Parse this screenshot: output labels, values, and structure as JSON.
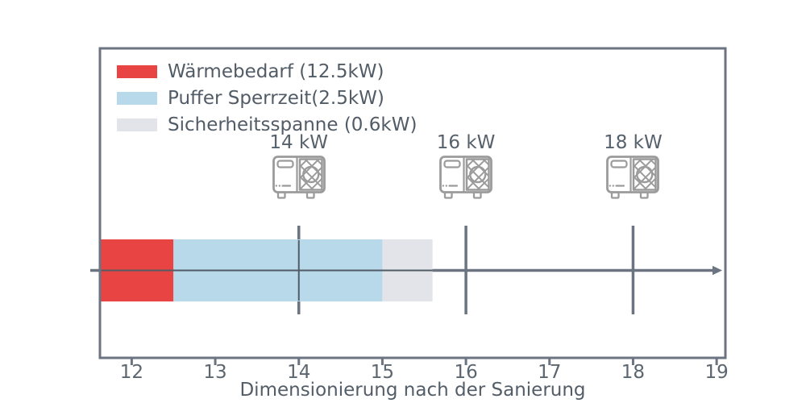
{
  "chart_data": {
    "type": "bar",
    "orientation": "horizontal",
    "stacked": true,
    "title": "",
    "xlabel": "Dimensionierung nach der Sanierung",
    "ylabel": "",
    "xlim": [
      11.62,
      19.105
    ],
    "xticks": [
      "12",
      "13",
      "14",
      "15",
      "16",
      "17",
      "18",
      "19"
    ],
    "grid": false,
    "legend_position": "upper-left-inside",
    "bar_start_kw": 11.62,
    "segments": [
      {
        "name": "waermebedarf",
        "label": "Wärmebedarf (12.5kW)",
        "value_kw": 12.5,
        "stack_end_kw": 12.5,
        "color": "#e94444"
      },
      {
        "name": "puffer-sperrzeit",
        "label": "Puffer Sperrzeit(2.5kW)",
        "value_kw": 2.5,
        "stack_end_kw": 15.0,
        "color": "#b7d9ea"
      },
      {
        "name": "sicherheitsspanne",
        "label": "Sicherheitsspanne (0.6kW)",
        "value_kw": 0.6,
        "stack_end_kw": 15.6,
        "color": "#e3e4e9"
      }
    ],
    "heat_pump_markers": [
      {
        "label": "14 kW",
        "x_kw": 14
      },
      {
        "label": "16 kW",
        "x_kw": 16
      },
      {
        "label": "18 kW",
        "x_kw": 18
      }
    ]
  },
  "palette": {
    "frame": "#6b7480",
    "thick_line": "#6b7480",
    "thin_line": "#525b66",
    "tick_text": "#5c6670",
    "text": "#535d68",
    "icon_stroke": "#9b9b9b"
  }
}
